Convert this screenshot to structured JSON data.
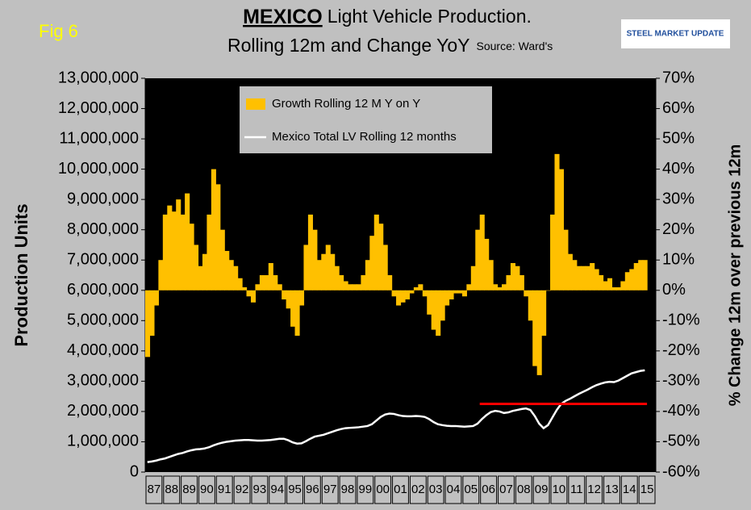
{
  "chart_data": {
    "type": "bar_line",
    "figure_label": "Fig 6",
    "title_emphasis": "MEXICO",
    "title": "Light Vehicle Production.",
    "subtitle": "Rolling 12m and Change YoY",
    "source": "Source: Ward's",
    "logo": "STEEL MARKET UPDATE",
    "y_label": "Production Units",
    "y2_label": "% Change 12m over previous 12m",
    "ylim": [
      0,
      13000000
    ],
    "yticks": [
      0,
      {
        "value": 1000000,
        "label": "1,000,000"
      },
      {
        "value": 2000000,
        "label": "2,000,000"
      },
      {
        "value": 3000000,
        "label": "3,000,000"
      },
      {
        "value": 4000000,
        "label": "4,000,000"
      },
      {
        "value": 5000000,
        "label": "5,000,000"
      },
      {
        "value": 6000000,
        "label": "6,000,000"
      },
      {
        "value": 7000000,
        "label": "7,000,000"
      },
      {
        "value": 8000000,
        "label": "8,000,000"
      },
      {
        "value": 9000000,
        "label": "9,000,000"
      },
      {
        "value": 10000000,
        "label": "10,000,000"
      },
      {
        "value": 11000000,
        "label": "11,000,000"
      },
      {
        "value": 12000000,
        "label": "12,000,000"
      },
      {
        "value": 13000000,
        "label": "13,000,000"
      }
    ],
    "y2lim": [
      -60,
      70
    ],
    "y2ticks": [
      {
        "value": -60,
        "label": "-60%"
      },
      {
        "value": -50,
        "label": "-50%"
      },
      {
        "value": -40,
        "label": "-40%"
      },
      {
        "value": -30,
        "label": "-30%"
      },
      {
        "value": -20,
        "label": "-20%"
      },
      {
        "value": -10,
        "label": "-10%"
      },
      {
        "value": 0,
        "label": "0%"
      },
      {
        "value": 10,
        "label": "10%"
      },
      {
        "value": 20,
        "label": "20%"
      },
      {
        "value": 30,
        "label": "30%"
      },
      {
        "value": 40,
        "label": "40%"
      },
      {
        "value": 50,
        "label": "50%"
      },
      {
        "value": 60,
        "label": "60%"
      },
      {
        "value": 70,
        "label": "70%"
      }
    ],
    "legend": "top-left",
    "categories": [
      "87",
      null,
      null,
      null,
      "88",
      null,
      null,
      null,
      "89",
      null,
      null,
      null,
      "90",
      null,
      null,
      null,
      "91",
      null,
      null,
      null,
      "92",
      null,
      null,
      null,
      "93",
      null,
      null,
      null,
      "94",
      null,
      null,
      null,
      "95",
      null,
      null,
      null,
      "96",
      null,
      null,
      null,
      "97",
      null,
      null,
      null,
      "98",
      null,
      null,
      null,
      "99",
      null,
      null,
      null,
      "00",
      null,
      null,
      null,
      "01",
      null,
      null,
      null,
      "02",
      null,
      null,
      null,
      "03",
      null,
      null,
      null,
      "04",
      null,
      null,
      null,
      "05",
      null,
      null,
      null,
      "06",
      null,
      null,
      null,
      "07",
      null,
      null,
      null,
      "08",
      null,
      null,
      null,
      "09",
      null,
      null,
      null,
      "10",
      null,
      null,
      null,
      "11",
      null,
      null,
      null,
      "12",
      null,
      null,
      null,
      "13",
      null,
      null,
      null,
      "14",
      null,
      null,
      null,
      "15",
      null
    ],
    "series": [
      {
        "name": "Growth Rolling 12 M Y on Y",
        "type": "bar",
        "axis": "y2",
        "color": "#ffc000",
        "values": [
          -22,
          -15,
          -5,
          10,
          25,
          28,
          26,
          30,
          25,
          32,
          22,
          15,
          8,
          12,
          25,
          40,
          35,
          20,
          13,
          10,
          8,
          4,
          1,
          -2,
          -4,
          2,
          5,
          5,
          9,
          5,
          2,
          -3,
          -6,
          -12,
          -15,
          -5,
          15,
          25,
          20,
          10,
          12,
          15,
          12,
          8,
          5,
          3,
          2,
          2,
          2,
          5,
          10,
          18,
          25,
          22,
          15,
          5,
          -2,
          -5,
          -4,
          -3,
          -1,
          1,
          2,
          -2,
          -8,
          -13,
          -15,
          -10,
          -5,
          -3,
          -1,
          -1,
          -2,
          2,
          8,
          20,
          25,
          17,
          10,
          2,
          1,
          2,
          5,
          9,
          8,
          5,
          -2,
          -10,
          -25,
          -28,
          -15,
          0,
          25,
          45,
          40,
          20,
          12,
          10,
          8,
          8,
          8,
          9,
          7,
          5,
          3,
          4,
          1,
          1,
          3,
          6,
          7,
          9,
          10,
          10
        ]
      },
      {
        "name": "Mexico Total LV Rolling 12 months",
        "type": "line",
        "axis": "y",
        "color": "#ffffff",
        "values": [
          330000,
          350000,
          380000,
          420000,
          450000,
          500000,
          550000,
          600000,
          630000,
          680000,
          720000,
          750000,
          760000,
          780000,
          820000,
          880000,
          930000,
          970000,
          1000000,
          1020000,
          1040000,
          1050000,
          1060000,
          1060000,
          1050000,
          1040000,
          1040000,
          1050000,
          1060000,
          1080000,
          1100000,
          1100000,
          1050000,
          980000,
          940000,
          950000,
          1020000,
          1100000,
          1170000,
          1200000,
          1230000,
          1280000,
          1330000,
          1380000,
          1420000,
          1450000,
          1460000,
          1470000,
          1480000,
          1500000,
          1520000,
          1580000,
          1700000,
          1820000,
          1900000,
          1930000,
          1920000,
          1880000,
          1850000,
          1840000,
          1840000,
          1850000,
          1840000,
          1820000,
          1750000,
          1650000,
          1580000,
          1550000,
          1530000,
          1520000,
          1520000,
          1510000,
          1500000,
          1510000,
          1520000,
          1600000,
          1750000,
          1880000,
          1980000,
          2020000,
          2000000,
          1950000,
          1970000,
          2020000,
          2050000,
          2080000,
          2100000,
          2050000,
          1850000,
          1600000,
          1450000,
          1550000,
          1800000,
          2050000,
          2250000,
          2350000,
          2420000,
          2500000,
          2580000,
          2650000,
          2720000,
          2800000,
          2870000,
          2920000,
          2960000,
          2980000,
          2970000,
          3020000,
          3100000,
          3180000,
          3260000,
          3300000,
          3340000,
          3360000
        ]
      }
    ],
    "reference_line": {
      "value": 2250000,
      "color": "#ff0000",
      "start_category": "06"
    }
  }
}
